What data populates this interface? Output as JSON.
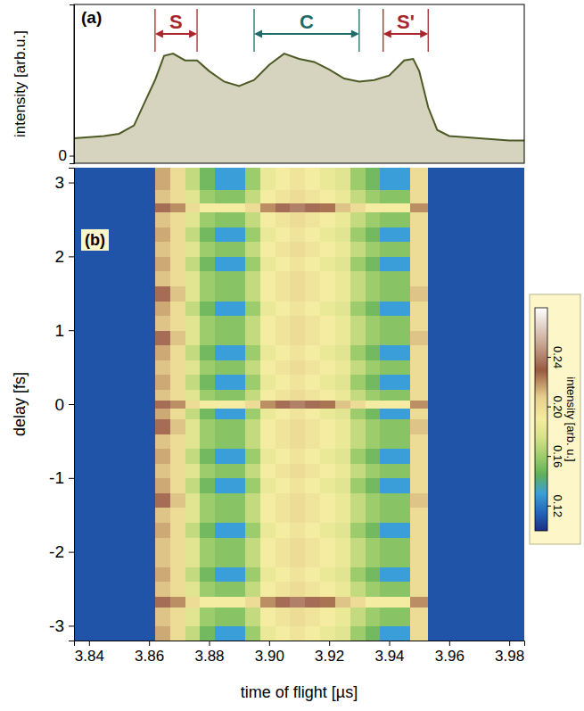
{
  "chart_data": [
    {
      "type": "area",
      "panel": "(a)",
      "ylabel": "intensity [arb.u.]",
      "x": [
        3.835,
        3.845,
        3.85,
        3.855,
        3.858,
        3.862,
        3.865,
        3.868,
        3.872,
        3.876,
        3.88,
        3.885,
        3.89,
        3.895,
        3.9,
        3.905,
        3.91,
        3.915,
        3.92,
        3.925,
        3.93,
        3.935,
        3.94,
        3.945,
        3.948,
        3.95,
        3.953,
        3.956,
        3.96,
        3.97,
        3.98,
        3.985
      ],
      "values": [
        0.115,
        0.13,
        0.145,
        0.2,
        0.33,
        0.5,
        0.66,
        0.675,
        0.63,
        0.63,
        0.56,
        0.49,
        0.46,
        0.5,
        0.6,
        0.675,
        0.64,
        0.62,
        0.57,
        0.51,
        0.49,
        0.5,
        0.53,
        0.63,
        0.64,
        0.56,
        0.32,
        0.17,
        0.13,
        0.115,
        0.1,
        0.1
      ],
      "color": "#d6d4be",
      "xlim": [
        3.835,
        3.985
      ],
      "ylim": [
        -0.05,
        1
      ],
      "yticks": [
        0
      ],
      "tick_labels": "y",
      "annotations": [
        {
          "text": "S",
          "x": [
            3.862,
            3.876
          ],
          "color": "#a8262b"
        },
        {
          "text": "C",
          "x": [
            3.895,
            3.93
          ],
          "color": "#1f6b6a"
        },
        {
          "text": "S'",
          "x": [
            3.938,
            3.953
          ],
          "color": "#a8262b"
        }
      ]
    },
    {
      "type": "heatmap",
      "panel": "(b)",
      "xlabel": "time of flight [µs]",
      "ylabel": "delay [fs]",
      "xlim": [
        3.835,
        3.985
      ],
      "ylim": [
        -3.2,
        3.2
      ],
      "xticks": [
        3.84,
        3.86,
        3.88,
        {
          "value": 3.9,
          "label": "3.90"
        },
        3.92,
        3.94,
        3.96,
        3.98
      ],
      "yticks": [
        -3,
        -2,
        -1,
        0,
        1,
        2,
        3
      ],
      "x_edges": [
        3.835,
        3.862,
        3.867,
        3.872,
        3.877,
        3.882,
        3.887,
        3.892,
        3.897,
        3.902,
        3.907,
        3.912,
        3.917,
        3.922,
        3.927,
        3.932,
        3.937,
        3.942,
        3.947,
        3.953,
        3.985
      ],
      "y_edges": [
        -3.2,
        -3.0,
        -2.75,
        -2.6,
        -2.4,
        -2.2,
        -2.0,
        -1.8,
        -1.6,
        -1.4,
        -1.2,
        -1.0,
        -0.8,
        -0.6,
        -0.4,
        -0.2,
        -0.05,
        0.05,
        0.2,
        0.4,
        0.6,
        0.8,
        1.0,
        1.2,
        1.4,
        1.6,
        1.8,
        2.0,
        2.2,
        2.4,
        2.6,
        2.72,
        2.9,
        3.2
      ],
      "z": [
        [
          0.11,
          0.215,
          0.2,
          0.17,
          0.15,
          0.13,
          0.13,
          0.16,
          0.185,
          0.19,
          0.195,
          0.19,
          0.185,
          0.18,
          0.16,
          0.15,
          0.13,
          0.13,
          0.2,
          0.11
        ],
        [
          0.11,
          0.21,
          0.2,
          0.18,
          0.16,
          0.155,
          0.155,
          0.17,
          0.19,
          0.195,
          0.2,
          0.195,
          0.19,
          0.185,
          0.17,
          0.16,
          0.155,
          0.155,
          0.2,
          0.11
        ],
        [
          0.11,
          0.235,
          0.22,
          0.2,
          0.19,
          0.19,
          0.19,
          0.2,
          0.22,
          0.235,
          0.24,
          0.235,
          0.225,
          0.21,
          0.2,
          0.19,
          0.19,
          0.19,
          0.22,
          0.11
        ],
        [
          0.11,
          0.21,
          0.2,
          0.18,
          0.16,
          0.155,
          0.155,
          0.17,
          0.19,
          0.195,
          0.2,
          0.195,
          0.19,
          0.185,
          0.17,
          0.16,
          0.155,
          0.155,
          0.2,
          0.11
        ],
        [
          0.11,
          0.215,
          0.2,
          0.17,
          0.15,
          0.13,
          0.13,
          0.16,
          0.185,
          0.19,
          0.195,
          0.19,
          0.185,
          0.18,
          0.16,
          0.15,
          0.13,
          0.13,
          0.2,
          0.11
        ],
        [
          0.11,
          0.21,
          0.2,
          0.18,
          0.16,
          0.155,
          0.155,
          0.17,
          0.19,
          0.195,
          0.2,
          0.195,
          0.19,
          0.185,
          0.17,
          0.16,
          0.155,
          0.155,
          0.2,
          0.11
        ],
        [
          0.11,
          0.21,
          0.2,
          0.18,
          0.16,
          0.155,
          0.155,
          0.17,
          0.19,
          0.195,
          0.2,
          0.195,
          0.19,
          0.185,
          0.17,
          0.16,
          0.155,
          0.155,
          0.2,
          0.11
        ],
        [
          0.11,
          0.215,
          0.2,
          0.17,
          0.15,
          0.13,
          0.13,
          0.16,
          0.185,
          0.19,
          0.195,
          0.19,
          0.185,
          0.18,
          0.16,
          0.15,
          0.13,
          0.13,
          0.2,
          0.11
        ],
        [
          0.11,
          0.21,
          0.2,
          0.18,
          0.16,
          0.155,
          0.155,
          0.17,
          0.19,
          0.195,
          0.2,
          0.195,
          0.19,
          0.185,
          0.17,
          0.16,
          0.155,
          0.155,
          0.2,
          0.11
        ],
        [
          0.11,
          0.235,
          0.21,
          0.18,
          0.16,
          0.155,
          0.155,
          0.17,
          0.19,
          0.195,
          0.2,
          0.195,
          0.19,
          0.185,
          0.17,
          0.16,
          0.155,
          0.155,
          0.21,
          0.11
        ],
        [
          0.11,
          0.215,
          0.2,
          0.17,
          0.15,
          0.13,
          0.13,
          0.16,
          0.185,
          0.19,
          0.195,
          0.19,
          0.185,
          0.18,
          0.16,
          0.15,
          0.13,
          0.13,
          0.2,
          0.11
        ],
        [
          0.11,
          0.21,
          0.2,
          0.18,
          0.16,
          0.155,
          0.155,
          0.17,
          0.19,
          0.195,
          0.2,
          0.195,
          0.19,
          0.185,
          0.17,
          0.16,
          0.155,
          0.155,
          0.2,
          0.11
        ],
        [
          0.11,
          0.215,
          0.2,
          0.17,
          0.15,
          0.13,
          0.13,
          0.16,
          0.185,
          0.19,
          0.195,
          0.19,
          0.185,
          0.18,
          0.16,
          0.15,
          0.13,
          0.13,
          0.2,
          0.11
        ],
        [
          0.11,
          0.21,
          0.2,
          0.18,
          0.16,
          0.155,
          0.155,
          0.17,
          0.19,
          0.195,
          0.2,
          0.195,
          0.19,
          0.185,
          0.17,
          0.16,
          0.155,
          0.155,
          0.2,
          0.11
        ],
        [
          0.11,
          0.235,
          0.21,
          0.18,
          0.16,
          0.155,
          0.155,
          0.17,
          0.19,
          0.195,
          0.2,
          0.195,
          0.19,
          0.185,
          0.17,
          0.16,
          0.155,
          0.155,
          0.21,
          0.11
        ],
        [
          0.11,
          0.215,
          0.2,
          0.17,
          0.15,
          0.13,
          0.13,
          0.16,
          0.185,
          0.19,
          0.195,
          0.19,
          0.185,
          0.18,
          0.16,
          0.15,
          0.13,
          0.13,
          0.2,
          0.11
        ],
        [
          0.11,
          0.235,
          0.22,
          0.2,
          0.19,
          0.19,
          0.19,
          0.2,
          0.22,
          0.235,
          0.24,
          0.235,
          0.225,
          0.21,
          0.2,
          0.19,
          0.19,
          0.19,
          0.22,
          0.11
        ],
        [
          0.11,
          0.21,
          0.2,
          0.18,
          0.16,
          0.155,
          0.155,
          0.17,
          0.19,
          0.195,
          0.2,
          0.195,
          0.19,
          0.185,
          0.17,
          0.16,
          0.155,
          0.155,
          0.2,
          0.11
        ],
        [
          0.11,
          0.215,
          0.2,
          0.17,
          0.15,
          0.13,
          0.13,
          0.16,
          0.185,
          0.19,
          0.195,
          0.19,
          0.185,
          0.18,
          0.16,
          0.15,
          0.13,
          0.13,
          0.2,
          0.11
        ],
        [
          0.11,
          0.21,
          0.2,
          0.18,
          0.16,
          0.155,
          0.155,
          0.17,
          0.19,
          0.195,
          0.2,
          0.195,
          0.19,
          0.185,
          0.17,
          0.16,
          0.155,
          0.155,
          0.2,
          0.11
        ],
        [
          0.11,
          0.215,
          0.2,
          0.17,
          0.15,
          0.13,
          0.13,
          0.16,
          0.185,
          0.19,
          0.195,
          0.19,
          0.185,
          0.18,
          0.16,
          0.15,
          0.13,
          0.13,
          0.2,
          0.11
        ],
        [
          0.11,
          0.235,
          0.21,
          0.18,
          0.16,
          0.155,
          0.155,
          0.17,
          0.19,
          0.195,
          0.2,
          0.195,
          0.19,
          0.185,
          0.17,
          0.16,
          0.155,
          0.155,
          0.21,
          0.11
        ],
        [
          0.11,
          0.21,
          0.2,
          0.18,
          0.16,
          0.155,
          0.155,
          0.17,
          0.19,
          0.195,
          0.2,
          0.195,
          0.19,
          0.185,
          0.17,
          0.16,
          0.155,
          0.155,
          0.2,
          0.11
        ],
        [
          0.11,
          0.215,
          0.2,
          0.17,
          0.15,
          0.13,
          0.13,
          0.16,
          0.185,
          0.19,
          0.195,
          0.19,
          0.185,
          0.18,
          0.16,
          0.15,
          0.13,
          0.13,
          0.2,
          0.11
        ],
        [
          0.11,
          0.235,
          0.21,
          0.18,
          0.16,
          0.155,
          0.155,
          0.17,
          0.19,
          0.195,
          0.2,
          0.195,
          0.19,
          0.185,
          0.17,
          0.16,
          0.155,
          0.155,
          0.21,
          0.11
        ],
        [
          0.11,
          0.21,
          0.2,
          0.18,
          0.16,
          0.155,
          0.155,
          0.17,
          0.19,
          0.195,
          0.2,
          0.195,
          0.19,
          0.185,
          0.17,
          0.16,
          0.155,
          0.155,
          0.2,
          0.11
        ],
        [
          0.11,
          0.215,
          0.2,
          0.17,
          0.15,
          0.13,
          0.13,
          0.16,
          0.185,
          0.19,
          0.195,
          0.19,
          0.185,
          0.18,
          0.16,
          0.15,
          0.13,
          0.13,
          0.2,
          0.11
        ],
        [
          0.11,
          0.21,
          0.2,
          0.18,
          0.16,
          0.155,
          0.155,
          0.17,
          0.19,
          0.195,
          0.2,
          0.195,
          0.19,
          0.185,
          0.17,
          0.16,
          0.155,
          0.155,
          0.2,
          0.11
        ],
        [
          0.11,
          0.215,
          0.2,
          0.17,
          0.15,
          0.13,
          0.13,
          0.16,
          0.185,
          0.19,
          0.195,
          0.19,
          0.185,
          0.18,
          0.16,
          0.15,
          0.13,
          0.13,
          0.2,
          0.11
        ],
        [
          0.11,
          0.21,
          0.2,
          0.18,
          0.16,
          0.155,
          0.155,
          0.17,
          0.19,
          0.195,
          0.2,
          0.195,
          0.19,
          0.185,
          0.17,
          0.16,
          0.155,
          0.155,
          0.2,
          0.11
        ],
        [
          0.11,
          0.235,
          0.22,
          0.2,
          0.19,
          0.19,
          0.19,
          0.2,
          0.22,
          0.235,
          0.24,
          0.235,
          0.225,
          0.21,
          0.2,
          0.19,
          0.19,
          0.19,
          0.22,
          0.11
        ],
        [
          0.11,
          0.21,
          0.2,
          0.18,
          0.16,
          0.155,
          0.155,
          0.17,
          0.19,
          0.195,
          0.2,
          0.195,
          0.19,
          0.185,
          0.17,
          0.16,
          0.155,
          0.155,
          0.2,
          0.11
        ],
        [
          0.11,
          0.215,
          0.2,
          0.17,
          0.15,
          0.13,
          0.13,
          0.16,
          0.185,
          0.19,
          0.195,
          0.19,
          0.185,
          0.18,
          0.16,
          0.15,
          0.13,
          0.13,
          0.2,
          0.11
        ]
      ],
      "colorbar": {
        "label": "intensity [arb. u.]",
        "range": [
          0.1,
          0.28
        ],
        "ticks": [
          0.12,
          0.16,
          {
            "value": 0.2,
            "label": "0.20"
          },
          0.24
        ]
      }
    }
  ]
}
